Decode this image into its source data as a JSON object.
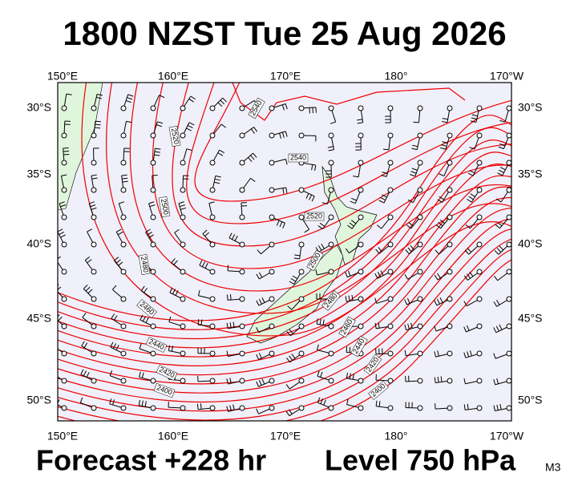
{
  "header": {
    "title": "1800 NZST Tue 25 Aug 2026"
  },
  "axes": {
    "lon_labels": [
      "150°E",
      "160°E",
      "170°E",
      "180°",
      "170°W"
    ],
    "lat_labels": [
      "30°S",
      "35°S",
      "40°S",
      "45°S",
      "50°S"
    ]
  },
  "contour_labels": [
    2540,
    2520,
    2540,
    2520,
    2500,
    2480,
    2500,
    2460,
    2480,
    2440,
    2460,
    2420,
    2440,
    2400,
    2420,
    2400
  ],
  "footer": {
    "forecast": "Forecast +228 hr",
    "level": "Level 750 hPa",
    "model": "M3"
  }
}
